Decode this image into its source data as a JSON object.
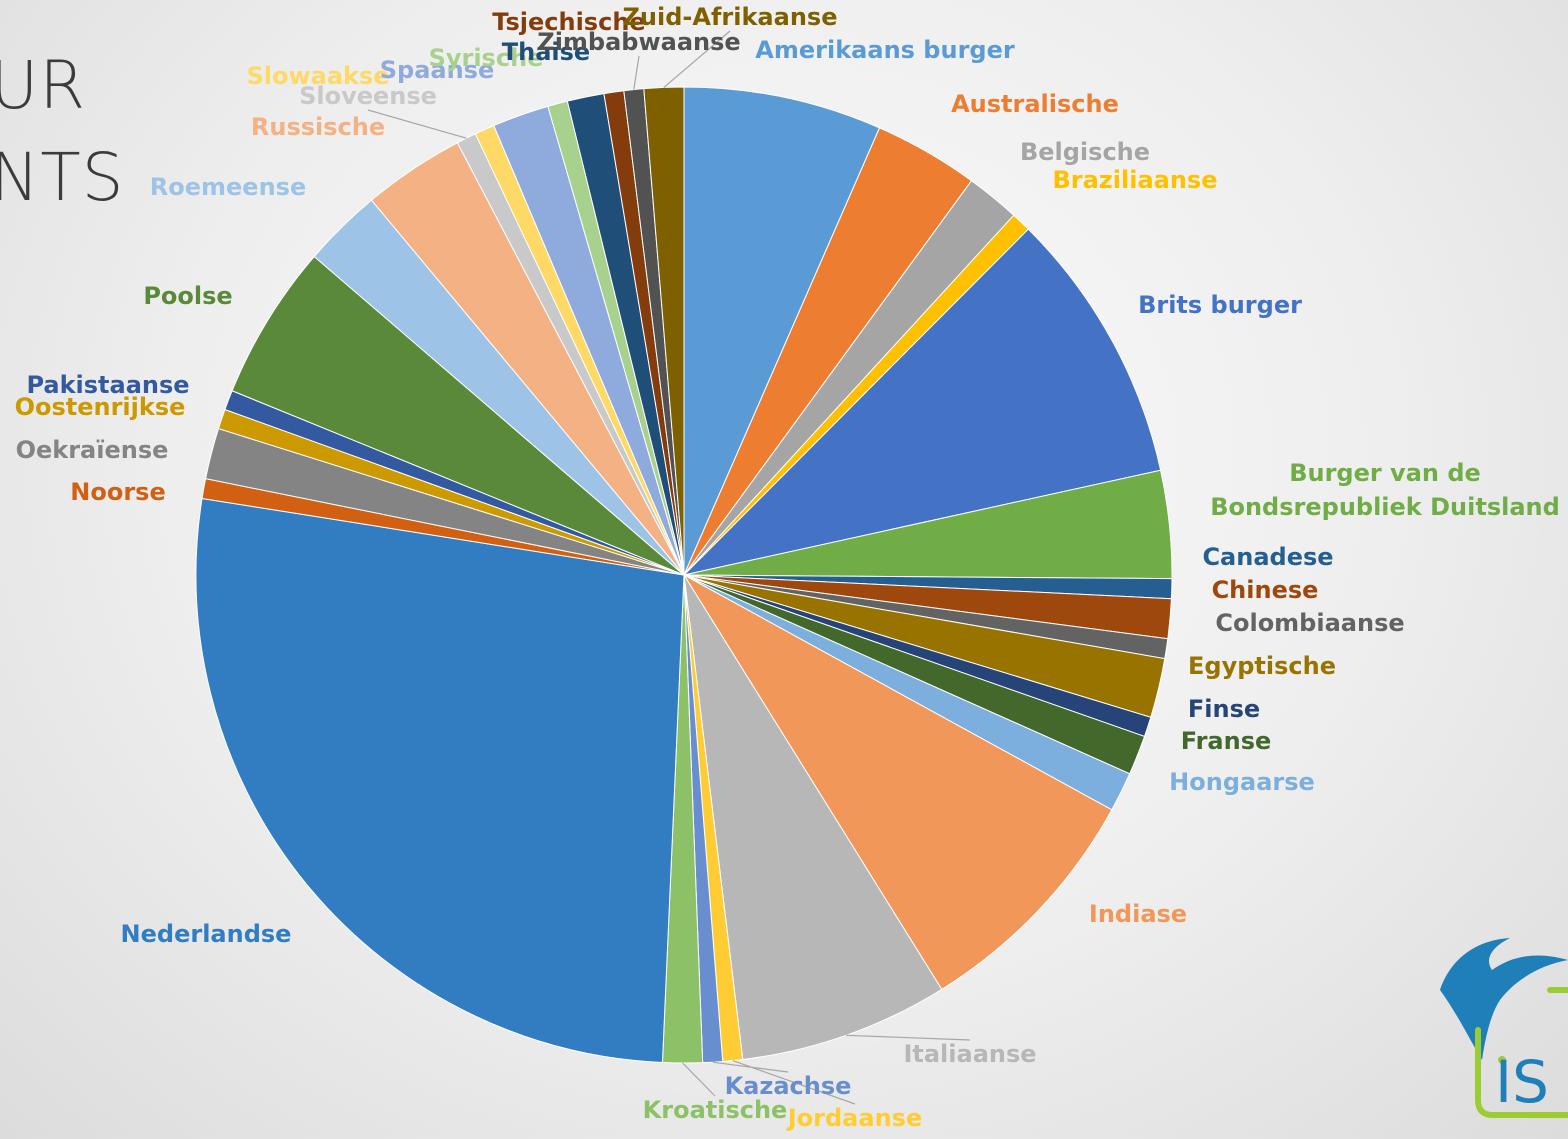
{
  "slide": {
    "title_lines": [
      "UR",
      "NTS"
    ]
  },
  "logo": {
    "text": "IS",
    "colors": {
      "bird": "#1f7fb8",
      "frame": "#9acd32",
      "text": "#1f7fb8"
    }
  },
  "chart_data": {
    "type": "pie",
    "title": "",
    "start_angle_deg": 0,
    "direction": "clockwise",
    "slices": [
      {
        "label": "Amerikaans burger",
        "value": 7.0,
        "color": "#5b9bd5"
      },
      {
        "label": "Australische",
        "value": 3.7,
        "color": "#ed7d31"
      },
      {
        "label": "Belgische",
        "value": 1.9,
        "color": "#a5a5a5"
      },
      {
        "label": "Braziliaanse",
        "value": 0.7,
        "color": "#ffc000"
      },
      {
        "label": "Brits burger",
        "value": 9.7,
        "color": "#4472c4"
      },
      {
        "label": "Burger van de Bondsrepubliek Duitsland",
        "value": 3.8,
        "color": "#70ad47"
      },
      {
        "label": "Canadese",
        "value": 0.7,
        "color": "#255e91"
      },
      {
        "label": "Chinese",
        "value": 1.4,
        "color": "#9e480e"
      },
      {
        "label": "Colombiaanse",
        "value": 0.7,
        "color": "#636363"
      },
      {
        "label": "Egyptische",
        "value": 2.1,
        "color": "#997300"
      },
      {
        "label": "Finse",
        "value": 0.7,
        "color": "#264478"
      },
      {
        "label": "Franse",
        "value": 1.4,
        "color": "#43682b"
      },
      {
        "label": "Hongaarse",
        "value": 1.4,
        "color": "#7cafdd"
      },
      {
        "label": "Indiase",
        "value": 8.7,
        "color": "#f1975a"
      },
      {
        "label": "Italiaanse",
        "value": 7.4,
        "color": "#b7b7b7"
      },
      {
        "label": "Jordaanse",
        "value": 0.7,
        "color": "#ffcd33"
      },
      {
        "label": "Kazachse",
        "value": 0.7,
        "color": "#698ed0"
      },
      {
        "label": "Kroatische",
        "value": 1.4,
        "color": "#8cc168"
      },
      {
        "label": "Nederlandse",
        "value": 28.6,
        "color": "#327dc2"
      },
      {
        "label": "Noorse",
        "value": 0.7,
        "color": "#d26012"
      },
      {
        "label": "Oekraïense",
        "value": 1.8,
        "color": "#848484"
      },
      {
        "label": "Oostenrijkse",
        "value": 0.7,
        "color": "#cc9a00"
      },
      {
        "label": "Pakistaanse",
        "value": 0.7,
        "color": "#335aa1"
      },
      {
        "label": "Poolse",
        "value": 5.5,
        "color": "#5a8a39"
      },
      {
        "label": "Roemeense",
        "value": 2.8,
        "color": "#9dc3e6"
      },
      {
        "label": "Russische",
        "value": 3.6,
        "color": "#f4b183"
      },
      {
        "label": "Sloveense",
        "value": 0.7,
        "color": "#c9c9c9"
      },
      {
        "label": "Slowaakse",
        "value": 0.7,
        "color": "#ffd966"
      },
      {
        "label": "Spaanse",
        "value": 2.0,
        "color": "#8faadc"
      },
      {
        "label": "Syrische",
        "value": 0.7,
        "color": "#a9d18e"
      },
      {
        "label": "Thaise",
        "value": 1.3,
        "color": "#1f4e79"
      },
      {
        "label": "Tsjechische",
        "value": 0.7,
        "color": "#843c0c"
      },
      {
        "label": "Zimbabwaanse",
        "value": 0.7,
        "color": "#525252"
      },
      {
        "label": "Zuid-Afrikaanse",
        "value": 1.4,
        "color": "#7f6000"
      }
    ]
  }
}
